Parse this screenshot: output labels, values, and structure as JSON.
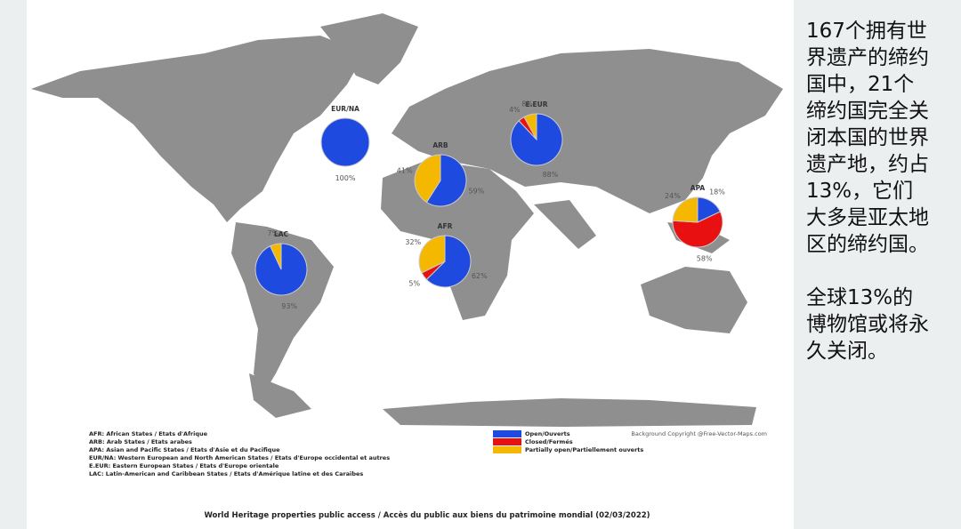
{
  "chart_data": [
    {
      "type": "pie",
      "title": "EUR/NA",
      "values": [
        100,
        0,
        0
      ],
      "value_labels": [
        "100%",
        null,
        null
      ]
    },
    {
      "type": "pie",
      "title": "E.EUR",
      "values": [
        88,
        4,
        8
      ],
      "value_labels": [
        "88%",
        "4%",
        "8%"
      ]
    },
    {
      "type": "pie",
      "title": "ARB",
      "values": [
        59,
        0,
        41
      ],
      "value_labels": [
        "59%",
        null,
        "41%"
      ]
    },
    {
      "type": "pie",
      "title": "AFR",
      "values": [
        62,
        5,
        32
      ],
      "value_labels": [
        "62%",
        "5%",
        "32%"
      ]
    },
    {
      "type": "pie",
      "title": "APA",
      "values": [
        18,
        58,
        24
      ],
      "value_labels": [
        "18%",
        "58%",
        "24%"
      ]
    },
    {
      "type": "pie",
      "title": "LAC",
      "values": [
        93,
        0,
        7
      ],
      "value_labels": [
        "93%",
        null,
        "7%"
      ]
    }
  ],
  "legend": {
    "labels": [
      "Open/Ouverts",
      "Closed/Fermés",
      "Partially open/Partiellement ouverts"
    ],
    "colors": [
      "#1f4ae0",
      "#e81010",
      "#f5b800"
    ]
  },
  "abbreviations": [
    "AFR: African States / Etats d'Afrique",
    "ARB: Arab States / Etats arabes",
    "APA: Asian and Pacific States / Etats d'Asie et du Pacifique",
    "EUR/NA: Western European and North American States / Etats d'Europe occidental et autres",
    "E.EUR: Eastern European States / Etats d'Europe orientale",
    "LAC: Latin-American and Caribbean States / Etats d'Amérique latine et des Caraïbes"
  ],
  "copyright": "Background Copyright @Free-Vector-Maps.com",
  "caption": "World Heritage properties public access / Accès du public aux biens du patrimoine mondial (02/03/2022)",
  "side_text": [
    "167个拥有世界遗产的缔约国中，21个缔约国完全关闭本国的世界遗产地，约占13%，它们大多是亚太地区的缔约国。",
    "全球13%的博物馆或将永久关闭。"
  ]
}
